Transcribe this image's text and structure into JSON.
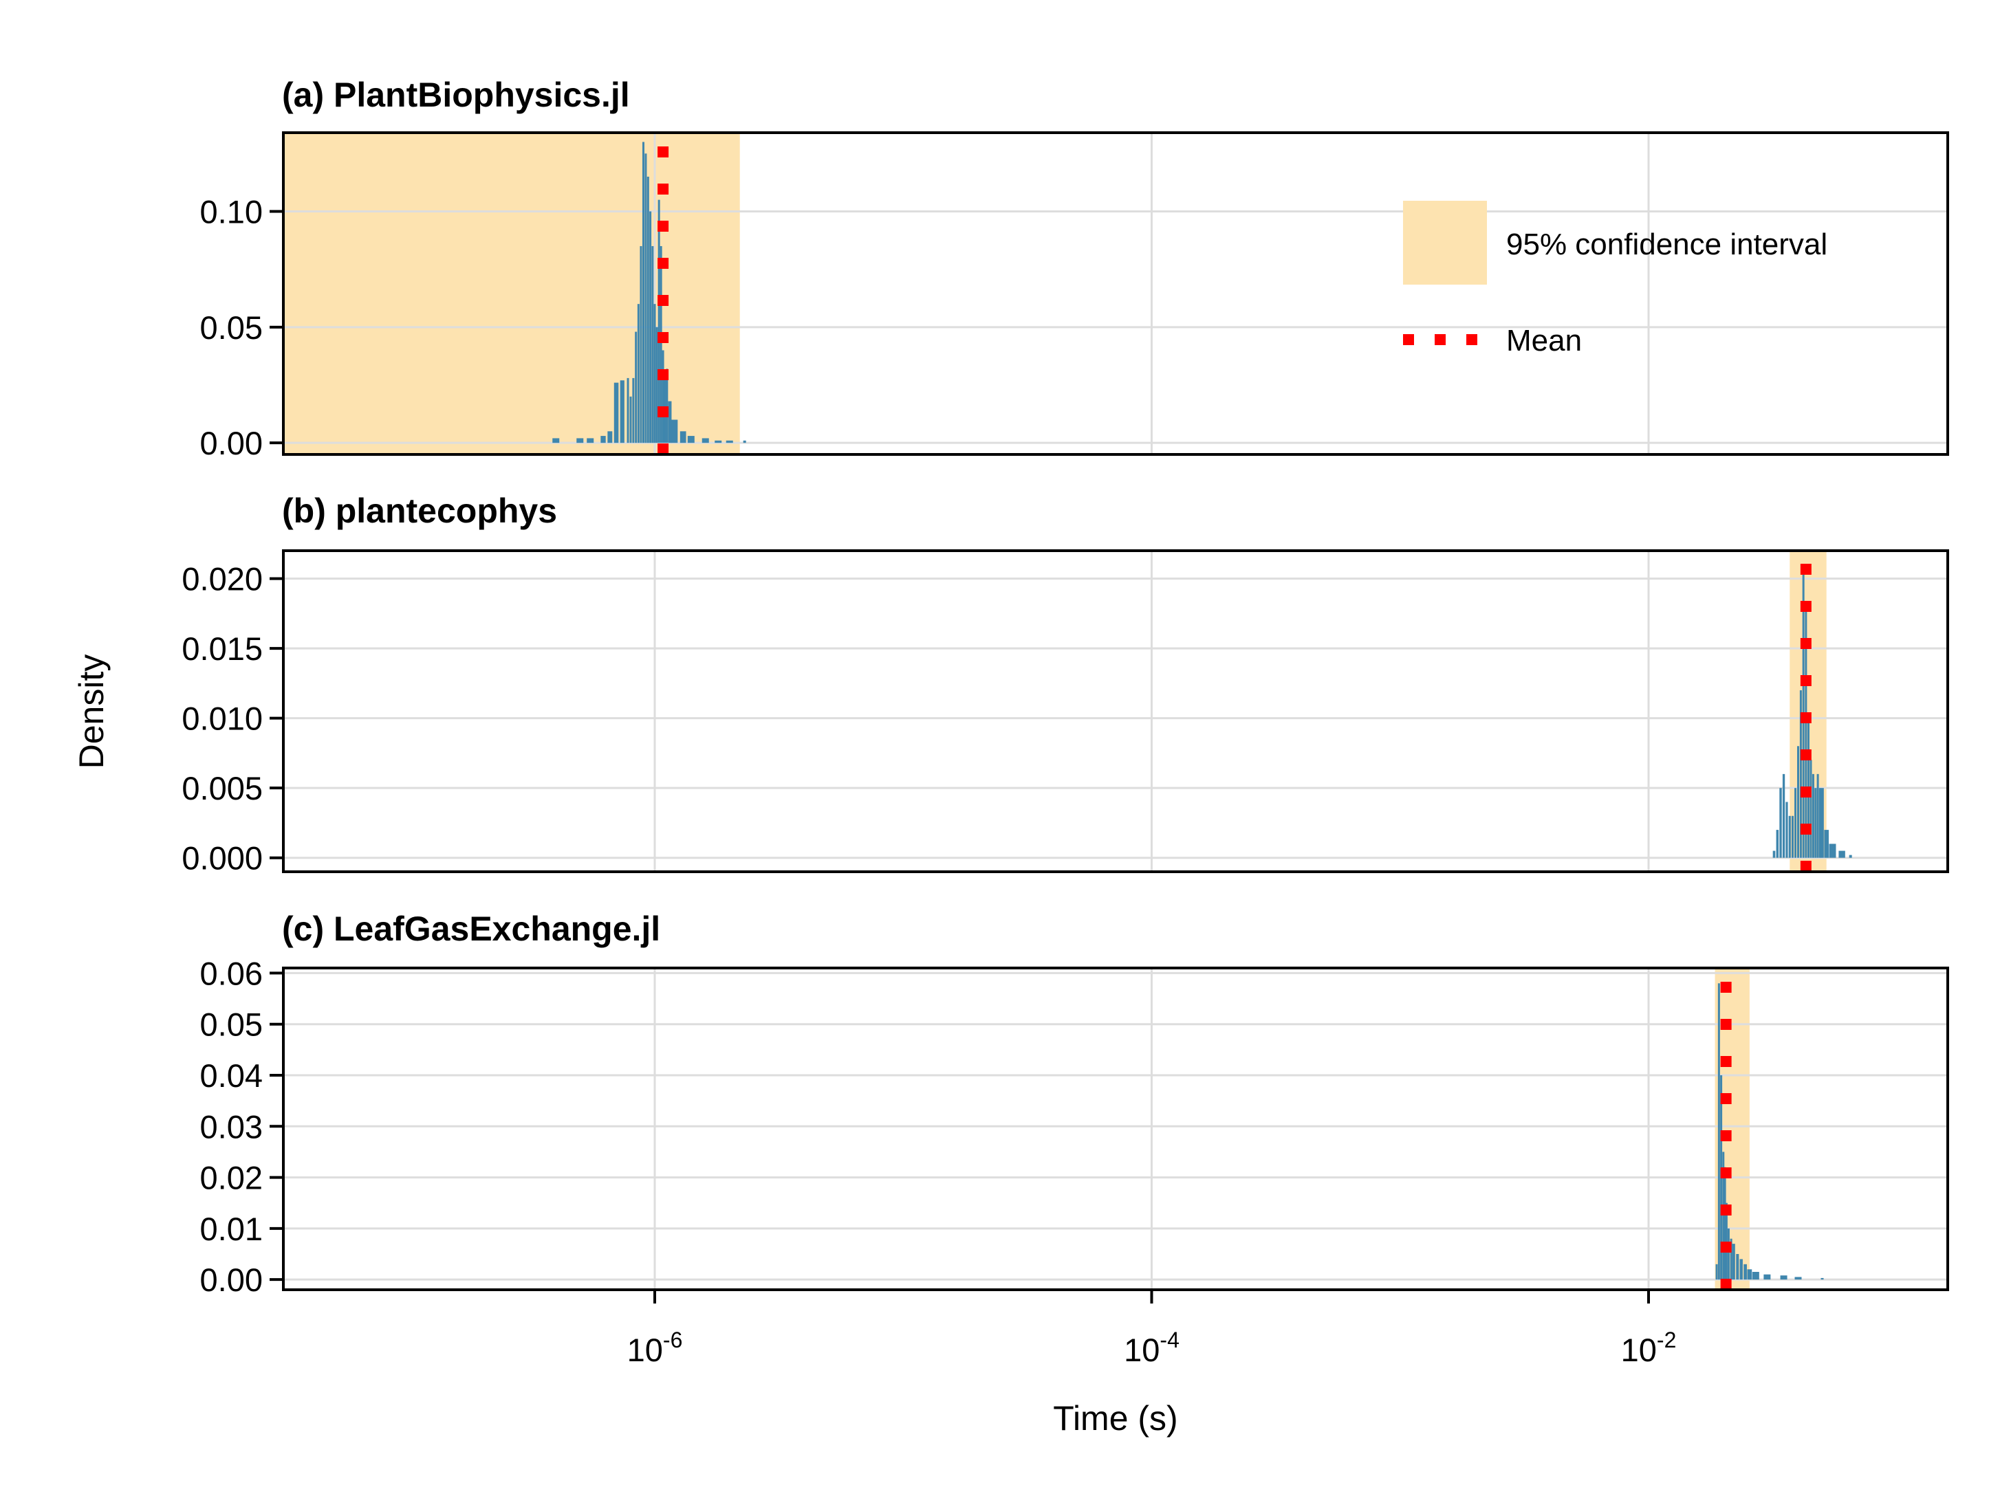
{
  "figure": {
    "xlabel": "Time (s)",
    "ylabel": "Density",
    "x_tick_labels": [
      {
        "base": "10",
        "exp": "-6",
        "value": 1e-06
      },
      {
        "base": "10",
        "exp": "-4",
        "value": 0.0001
      },
      {
        "base": "10",
        "exp": "-2",
        "value": 0.01
      }
    ],
    "legend": {
      "ci_label": "95% confidence interval",
      "mean_label": "Mean",
      "placement": "top-right of panel (a)"
    },
    "colors": {
      "bars": "#3f86ad",
      "ci_fill": "#fde3b0",
      "mean_line": "#ff0000",
      "grid": "#dddddd",
      "axes": "#000000"
    }
  },
  "chart_data": [
    {
      "type": "bar",
      "title": "(a) PlantBiophysics.jl",
      "xscale": "log",
      "xlim": [
        3.2e-08,
        0.16
      ],
      "ylim": [
        -0.005,
        0.134
      ],
      "yticks": [
        0.0,
        0.05,
        0.1
      ],
      "ytick_labels": [
        "0.00",
        "0.05",
        "0.10"
      ],
      "grid": true,
      "mean": 1.08e-06,
      "ci": [
        3.2e-08,
        2.2e-06
      ],
      "histogram": {
        "x": [
          4e-07,
          5e-07,
          5.5e-07,
          6.2e-07,
          6.6e-07,
          7e-07,
          7.4e-07,
          7.8e-07,
          8e-07,
          8.2e-07,
          8.4e-07,
          8.6e-07,
          8.8e-07,
          9e-07,
          9.2e-07,
          9.4e-07,
          9.6e-07,
          9.8e-07,
          1e-06,
          1.02e-06,
          1.04e-06,
          1.06e-06,
          1.08e-06,
          1.1e-06,
          1.12e-06,
          1.15e-06,
          1.2e-06,
          1.3e-06,
          1.4e-06,
          1.6e-06,
          1.8e-06,
          2e-06,
          2.3e-06
        ],
        "density": [
          0.002,
          0.002,
          0.002,
          0.003,
          0.005,
          0.026,
          0.027,
          0.028,
          0.02,
          0.028,
          0.048,
          0.06,
          0.085,
          0.13,
          0.125,
          0.115,
          0.1,
          0.085,
          0.06,
          0.05,
          0.105,
          0.085,
          0.04,
          0.03,
          0.032,
          0.018,
          0.01,
          0.005,
          0.003,
          0.002,
          0.001,
          0.001,
          0.001
        ]
      }
    },
    {
      "type": "bar",
      "title": "(b) plantecophys",
      "xscale": "log",
      "xlim": [
        3.2e-08,
        0.16
      ],
      "ylim": [
        -0.001,
        0.022
      ],
      "yticks": [
        0.0,
        0.005,
        0.01,
        0.015,
        0.02
      ],
      "ytick_labels": [
        "0.000",
        "0.005",
        "0.010",
        "0.015",
        "0.020"
      ],
      "grid": true,
      "mean": 0.043,
      "ci": [
        0.037,
        0.052
      ],
      "histogram": {
        "x": [
          0.032,
          0.033,
          0.034,
          0.035,
          0.036,
          0.037,
          0.038,
          0.039,
          0.04,
          0.041,
          0.042,
          0.043,
          0.044,
          0.045,
          0.046,
          0.047,
          0.048,
          0.049,
          0.05,
          0.052,
          0.055,
          0.06,
          0.065
        ],
        "density": [
          0.0005,
          0.002,
          0.005,
          0.006,
          0.004,
          0.003,
          0.003,
          0.005,
          0.008,
          0.012,
          0.021,
          0.018,
          0.01,
          0.007,
          0.006,
          0.005,
          0.006,
          0.005,
          0.005,
          0.002,
          0.001,
          0.0005,
          0.0002
        ]
      }
    },
    {
      "type": "bar",
      "title": "(c) LeafGasExchange.jl",
      "xscale": "log",
      "xlim": [
        3.2e-08,
        0.16
      ],
      "ylim": [
        -0.002,
        0.061
      ],
      "yticks": [
        0.0,
        0.01,
        0.02,
        0.03,
        0.04,
        0.05,
        0.06
      ],
      "ytick_labels": [
        "0.00",
        "0.01",
        "0.02",
        "0.03",
        "0.04",
        "0.05",
        "0.06"
      ],
      "grid": true,
      "mean": 0.0205,
      "ci": [
        0.0185,
        0.0255
      ],
      "histogram": {
        "x": [
          0.0188,
          0.0192,
          0.0196,
          0.02,
          0.0203,
          0.0206,
          0.021,
          0.0215,
          0.022,
          0.0228,
          0.0236,
          0.0245,
          0.0255,
          0.027,
          0.03,
          0.035,
          0.04,
          0.05
        ],
        "density": [
          0.003,
          0.058,
          0.04,
          0.025,
          0.022,
          0.015,
          0.01,
          0.008,
          0.007,
          0.005,
          0.004,
          0.003,
          0.002,
          0.0015,
          0.001,
          0.0008,
          0.0005,
          0.0003
        ]
      }
    }
  ]
}
